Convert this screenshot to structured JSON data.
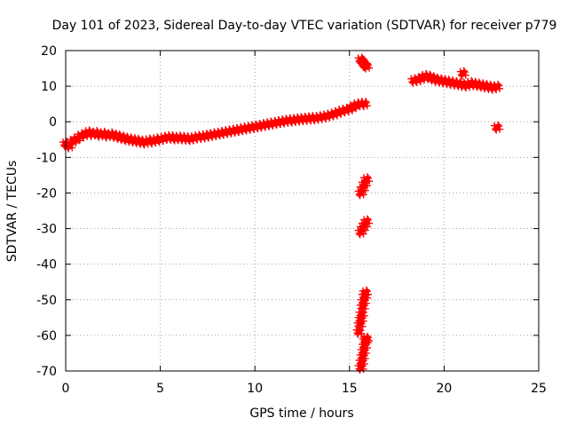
{
  "chart_data": {
    "type": "scatter",
    "title": "Day 101 of 2023, Sidereal Day-to-day VTEC variation (SDTVAR) for receiver p779",
    "xlabel": "GPS time / hours",
    "ylabel": "SDTVAR / TECUs",
    "xlim": [
      0,
      25
    ],
    "ylim": [
      -70,
      20
    ],
    "xticks": [
      0,
      5,
      10,
      15,
      20,
      25
    ],
    "yticks": [
      -70,
      -60,
      -50,
      -40,
      -30,
      -20,
      -10,
      0,
      10,
      20
    ],
    "grid": true,
    "color": "#ff0000",
    "series": [
      {
        "name": "SDTVAR",
        "marker": "plus",
        "points": [
          [
            0.0,
            -6.2
          ],
          [
            0.2,
            -6.8
          ],
          [
            0.4,
            -5.4
          ],
          [
            0.6,
            -4.8
          ],
          [
            0.8,
            -4.0
          ],
          [
            1.0,
            -3.6
          ],
          [
            1.2,
            -3.0
          ],
          [
            1.4,
            -3.4
          ],
          [
            1.6,
            -3.2
          ],
          [
            1.8,
            -3.6
          ],
          [
            2.0,
            -3.4
          ],
          [
            2.2,
            -3.8
          ],
          [
            2.4,
            -3.6
          ],
          [
            2.6,
            -3.9
          ],
          [
            2.8,
            -4.2
          ],
          [
            3.0,
            -4.5
          ],
          [
            3.2,
            -4.8
          ],
          [
            3.4,
            -5.0
          ],
          [
            3.6,
            -5.2
          ],
          [
            3.8,
            -5.4
          ],
          [
            4.0,
            -5.6
          ],
          [
            4.2,
            -5.8
          ],
          [
            4.4,
            -5.3
          ],
          [
            4.6,
            -5.5
          ],
          [
            4.8,
            -5.0
          ],
          [
            5.0,
            -5.0
          ],
          [
            5.2,
            -4.6
          ],
          [
            5.4,
            -4.4
          ],
          [
            5.6,
            -4.4
          ],
          [
            5.8,
            -4.6
          ],
          [
            6.0,
            -4.5
          ],
          [
            6.2,
            -4.6
          ],
          [
            6.4,
            -4.7
          ],
          [
            6.6,
            -4.8
          ],
          [
            6.8,
            -4.5
          ],
          [
            7.0,
            -4.3
          ],
          [
            7.2,
            -4.2
          ],
          [
            7.4,
            -4.0
          ],
          [
            7.6,
            -3.8
          ],
          [
            7.8,
            -3.6
          ],
          [
            8.0,
            -3.4
          ],
          [
            8.2,
            -3.2
          ],
          [
            8.4,
            -3.0
          ],
          [
            8.6,
            -2.8
          ],
          [
            8.8,
            -2.6
          ],
          [
            9.0,
            -2.4
          ],
          [
            9.2,
            -2.2
          ],
          [
            9.4,
            -2.0
          ],
          [
            9.6,
            -1.8
          ],
          [
            9.8,
            -1.6
          ],
          [
            10.0,
            -1.4
          ],
          [
            10.2,
            -1.2
          ],
          [
            10.4,
            -1.0
          ],
          [
            10.6,
            -0.8
          ],
          [
            10.8,
            -0.6
          ],
          [
            11.0,
            -0.4
          ],
          [
            11.2,
            -0.2
          ],
          [
            11.4,
            0.0
          ],
          [
            11.6,
            0.2
          ],
          [
            11.8,
            0.4
          ],
          [
            12.0,
            0.4
          ],
          [
            12.2,
            0.6
          ],
          [
            12.4,
            0.7
          ],
          [
            12.6,
            0.8
          ],
          [
            12.8,
            0.9
          ],
          [
            13.0,
            1.0
          ],
          [
            13.2,
            1.0
          ],
          [
            13.4,
            1.2
          ],
          [
            13.6,
            1.4
          ],
          [
            13.8,
            1.6
          ],
          [
            14.0,
            1.9
          ],
          [
            14.2,
            2.2
          ],
          [
            14.4,
            2.6
          ],
          [
            14.6,
            3.0
          ],
          [
            14.8,
            3.3
          ],
          [
            15.0,
            3.6
          ],
          [
            15.2,
            4.2
          ],
          [
            15.4,
            4.8
          ],
          [
            15.6,
            5.0
          ],
          [
            15.8,
            5.0
          ],
          [
            15.6,
            17.4
          ],
          [
            15.7,
            16.8
          ],
          [
            15.8,
            16.0
          ],
          [
            15.9,
            15.6
          ],
          [
            15.6,
            -20.0
          ],
          [
            15.7,
            -18.8
          ],
          [
            15.8,
            -17.5
          ],
          [
            15.9,
            -16.2
          ],
          [
            15.6,
            -31.0
          ],
          [
            15.7,
            -30.0
          ],
          [
            15.8,
            -29.0
          ],
          [
            15.9,
            -28.0
          ],
          [
            15.5,
            -59.0
          ],
          [
            15.55,
            -57.0
          ],
          [
            15.6,
            -55.5
          ],
          [
            15.65,
            -54.0
          ],
          [
            15.7,
            -52.0
          ],
          [
            15.75,
            -50.5
          ],
          [
            15.8,
            -49.0
          ],
          [
            15.85,
            -48.0
          ],
          [
            15.6,
            -69.0
          ],
          [
            15.65,
            -67.5
          ],
          [
            15.7,
            -66.0
          ],
          [
            15.75,
            -64.5
          ],
          [
            15.8,
            -63.0
          ],
          [
            15.85,
            -61.5
          ],
          [
            15.9,
            -61.0
          ],
          [
            18.4,
            11.6
          ],
          [
            18.6,
            11.8
          ],
          [
            18.8,
            12.2
          ],
          [
            19.0,
            12.8
          ],
          [
            19.2,
            12.6
          ],
          [
            19.4,
            12.2
          ],
          [
            19.6,
            11.8
          ],
          [
            19.8,
            11.6
          ],
          [
            20.0,
            11.4
          ],
          [
            20.2,
            11.2
          ],
          [
            20.4,
            11.0
          ],
          [
            20.6,
            10.8
          ],
          [
            20.8,
            10.6
          ],
          [
            21.0,
            10.4
          ],
          [
            21.2,
            10.2
          ],
          [
            21.4,
            10.8
          ],
          [
            21.6,
            10.6
          ],
          [
            21.8,
            10.4
          ],
          [
            22.0,
            10.2
          ],
          [
            22.2,
            10.0
          ],
          [
            22.4,
            9.8
          ],
          [
            22.6,
            9.6
          ],
          [
            22.8,
            9.8
          ],
          [
            21.0,
            13.6
          ],
          [
            22.8,
            -1.6
          ]
        ]
      }
    ]
  }
}
